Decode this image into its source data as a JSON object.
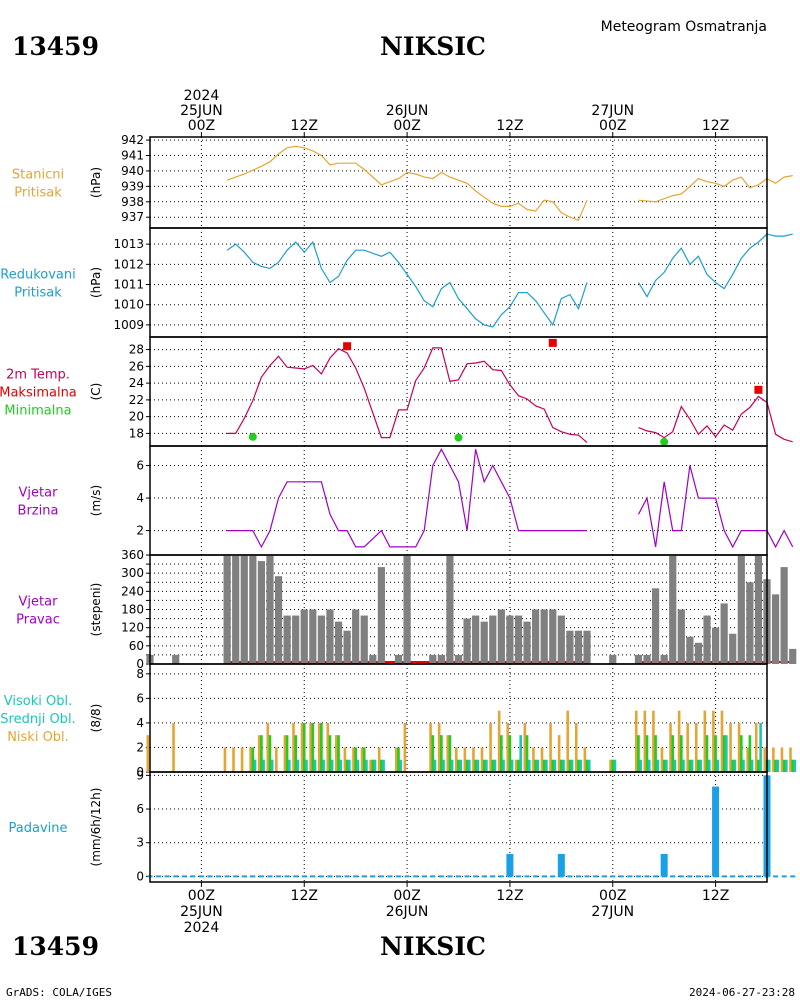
{
  "header": {
    "station_id": "13459",
    "station_name": "NIKSIC",
    "product": "Meteogram Osmatranja"
  },
  "footer": {
    "station_id": "13459",
    "station_name": "NIKSIC",
    "credit": "GrADS: COLA/IGES",
    "timestamp": "2024-06-27-23:28"
  },
  "time_axis": {
    "labels": [
      {
        "hour": 6,
        "lines": [
          "2024",
          "25JUN",
          "00Z"
        ],
        "bottom_lines": [
          "00Z",
          "25JUN",
          "2024"
        ]
      },
      {
        "hour": 18,
        "lines": [
          "12Z"
        ],
        "bottom_lines": [
          "12Z"
        ]
      },
      {
        "hour": 30,
        "lines": [
          "26JUN",
          "00Z"
        ],
        "bottom_lines": [
          "00Z",
          "26JUN"
        ]
      },
      {
        "hour": 42,
        "lines": [
          "12Z"
        ],
        "bottom_lines": [
          "12Z"
        ]
      },
      {
        "hour": 54,
        "lines": [
          "27JUN",
          "00Z"
        ],
        "bottom_lines": [
          "00Z",
          "27JUN"
        ]
      },
      {
        "hour": 66,
        "lines": [
          "12Z"
        ],
        "bottom_lines": [
          "12Z"
        ]
      }
    ]
  },
  "colors": {
    "pressure": "#e6a532",
    "reduced_pressure": "#1aa0d2",
    "temperature": "#c8005a",
    "tmax": "#e60000",
    "tmin": "#22cc22",
    "wind_speed": "#a000c8",
    "wind_dir_bar": "#808080",
    "wind_dir_base": "#e60000",
    "cloud_low": "#e6a532",
    "cloud_mid": "#22cc22",
    "cloud_high": "#19c8b4",
    "precip": "#1aa0e6"
  },
  "chart_data": [
    {
      "type": "line",
      "name": "pressure",
      "label_lines": [
        "Stanicni",
        "Pritisak"
      ],
      "ylabel": "(hPa)",
      "ylim": [
        936.3,
        942.2
      ],
      "yticks": [
        937,
        938,
        939,
        940,
        941,
        942
      ],
      "x": [
        9,
        11,
        13,
        14,
        15,
        16,
        17,
        18,
        19,
        20,
        21,
        22,
        23,
        24,
        25,
        27,
        29,
        30,
        31,
        32,
        33,
        34,
        35,
        36,
        37,
        38,
        39,
        40,
        41,
        42,
        43,
        44,
        45,
        46,
        47,
        48,
        49,
        50,
        51,
        57,
        59,
        60,
        61,
        62,
        63,
        64,
        65,
        66,
        67,
        68,
        69,
        70,
        71,
        72,
        73,
        74,
        75
      ],
      "values": [
        939.4,
        939.8,
        940.3,
        940.6,
        941.1,
        941.5,
        941.6,
        941.5,
        941.3,
        941.0,
        940.4,
        940.5,
        940.5,
        940.5,
        940.1,
        939.1,
        939.5,
        939.9,
        939.8,
        939.6,
        939.5,
        939.9,
        939.6,
        939.4,
        939.2,
        938.7,
        938.3,
        937.9,
        937.7,
        937.7,
        937.9,
        937.5,
        937.4,
        938.1,
        938.0,
        937.3,
        937.0,
        936.8,
        938.1,
        938.1,
        938.0,
        938.2,
        938.4,
        938.5,
        939.0,
        939.5,
        939.3,
        939.2,
        939.0,
        939.4,
        939.6,
        938.9,
        939.1,
        939.5,
        939.2,
        939.6,
        939.7
      ]
    },
    {
      "type": "line",
      "name": "reduced_pressure",
      "label_lines": [
        "Redukovani",
        "Pritisak"
      ],
      "ylabel": "(hPa)",
      "ylim": [
        1008.4,
        1013.8
      ],
      "yticks": [
        1009,
        1010,
        1011,
        1012,
        1013
      ],
      "x": [
        9,
        10,
        11,
        12,
        13,
        14,
        15,
        16,
        17,
        18,
        19,
        20,
        21,
        22,
        23,
        24,
        25,
        27,
        28,
        29,
        30,
        31,
        32,
        33,
        34,
        35,
        36,
        37,
        38,
        39,
        40,
        41,
        42,
        43,
        44,
        45,
        46,
        47,
        48,
        49,
        50,
        51,
        57,
        58,
        59,
        60,
        61,
        62,
        63,
        64,
        65,
        66,
        67,
        68,
        69,
        70,
        71,
        72,
        73,
        74,
        75
      ],
      "values": [
        1012.7,
        1013.0,
        1012.6,
        1012.1,
        1011.9,
        1011.8,
        1012.1,
        1012.7,
        1013.1,
        1012.6,
        1013.1,
        1011.8,
        1011.1,
        1011.4,
        1012.2,
        1012.7,
        1012.7,
        1012.4,
        1012.6,
        1012.1,
        1011.5,
        1010.9,
        1010.2,
        1009.9,
        1010.8,
        1011.1,
        1010.3,
        1009.8,
        1009.3,
        1009.0,
        1008.9,
        1009.5,
        1009.9,
        1010.6,
        1010.6,
        1010.2,
        1009.6,
        1009.0,
        1010.3,
        1010.5,
        1009.8,
        1011.1,
        1011.1,
        1010.4,
        1011.2,
        1011.6,
        1012.3,
        1012.8,
        1012.0,
        1012.4,
        1011.5,
        1011.1,
        1010.8,
        1011.5,
        1012.3,
        1012.8,
        1013.1,
        1013.5,
        1013.4,
        1013.4,
        1013.5
      ]
    },
    {
      "type": "line",
      "name": "temperature",
      "label_lines": [
        "2m Temp.",
        "Maksimalna",
        "Minimalna"
      ],
      "ylabel": "(C)",
      "ylim": [
        16.5,
        29.5
      ],
      "yticks": [
        18,
        20,
        22,
        24,
        26,
        28
      ],
      "x": [
        9,
        10,
        11,
        12,
        13,
        14,
        15,
        16,
        17,
        18,
        19,
        20,
        21,
        22,
        23,
        24,
        25,
        27,
        28,
        29,
        30,
        31,
        32,
        33,
        34,
        35,
        36,
        37,
        38,
        39,
        40,
        41,
        42,
        43,
        44,
        45,
        46,
        47,
        48,
        49,
        50,
        51,
        57,
        58,
        59,
        60,
        61,
        62,
        63,
        64,
        65,
        66,
        67,
        68,
        69,
        70,
        71,
        72,
        73,
        74,
        75
      ],
      "values": [
        18.0,
        18.0,
        19.8,
        21.9,
        24.7,
        26.1,
        27.2,
        25.9,
        25.8,
        25.7,
        26.1,
        25.1,
        27.0,
        28.1,
        27.6,
        25.8,
        23.4,
        17.5,
        17.5,
        20.8,
        20.8,
        24.3,
        25.8,
        28.2,
        28.2,
        24.2,
        24.4,
        26.3,
        26.4,
        26.6,
        25.6,
        25.5,
        23.8,
        22.5,
        22.1,
        21.3,
        20.9,
        18.7,
        18.2,
        17.9,
        17.8,
        16.9,
        18.7,
        18.3,
        18.1,
        17.5,
        18.2,
        21.2,
        19.7,
        17.9,
        18.9,
        17.6,
        19.0,
        18.4,
        20.3,
        21.1,
        22.4,
        21.7,
        17.9,
        17.3,
        17.0
      ],
      "max_markers": [
        {
          "x": 23,
          "y": 28.4
        },
        {
          "x": 47,
          "y": 28.8
        },
        {
          "x": 71,
          "y": 23.2
        }
      ],
      "min_markers": [
        {
          "x": 12,
          "y": 17.6
        },
        {
          "x": 36,
          "y": 17.5
        },
        {
          "x": 60,
          "y": 17.0
        }
      ]
    },
    {
      "type": "line",
      "name": "wind_speed",
      "label_lines": [
        "Vjetar",
        "Brzina"
      ],
      "ylabel": "(m/s)",
      "ylim": [
        0.5,
        7.2
      ],
      "yticks": [
        2,
        4,
        6
      ],
      "x": [
        9,
        10,
        11,
        12,
        13,
        14,
        15,
        16,
        17,
        18,
        19,
        20,
        21,
        22,
        23,
        24,
        25,
        27,
        28,
        29,
        30,
        31,
        32,
        33,
        34,
        35,
        36,
        37,
        38,
        39,
        40,
        41,
        42,
        43,
        44,
        45,
        46,
        47,
        48,
        49,
        50,
        51,
        57,
        58,
        59,
        60,
        61,
        62,
        63,
        64,
        65,
        66,
        67,
        68,
        69,
        70,
        71,
        72,
        73,
        74,
        75
      ],
      "values": [
        2,
        2,
        2,
        2,
        1,
        2,
        4,
        5,
        5,
        5,
        5,
        5,
        3,
        2,
        2,
        1,
        1,
        2,
        1,
        1,
        1,
        1,
        2,
        6,
        7,
        6,
        5,
        2,
        7,
        5,
        6,
        5,
        4,
        2,
        2,
        2,
        2,
        2,
        2,
        2,
        2,
        2,
        3,
        4,
        1,
        5,
        2,
        2,
        6,
        4,
        4,
        4,
        2,
        1,
        2,
        2,
        2,
        2,
        1,
        2,
        1
      ]
    },
    {
      "type": "bar",
      "name": "wind_direction",
      "label_lines": [
        "Vjetar",
        "Pravac"
      ],
      "ylabel": "(stepeni)",
      "ylim": [
        0,
        360
      ],
      "yticks": [
        0,
        30,
        60,
        90,
        120,
        150,
        180,
        210,
        240,
        270,
        300,
        330,
        360
      ],
      "ytick_labels": [
        "0",
        "",
        "60",
        "",
        "120",
        "",
        "180",
        "",
        "240",
        "",
        "300",
        "",
        "360"
      ],
      "x": [
        0,
        3,
        6,
        9,
        10,
        11,
        12,
        13,
        14,
        15,
        16,
        17,
        18,
        19,
        20,
        21,
        22,
        23,
        24,
        25,
        26,
        27,
        29,
        30,
        33,
        34,
        35,
        36,
        37,
        38,
        39,
        40,
        41,
        42,
        43,
        44,
        45,
        46,
        47,
        48,
        49,
        50,
        51,
        54,
        57,
        58,
        59,
        60,
        61,
        62,
        63,
        64,
        65,
        66,
        67,
        68,
        69,
        70,
        71,
        72,
        73,
        74,
        75
      ],
      "values": [
        30,
        30,
        0,
        360,
        360,
        360,
        360,
        340,
        360,
        290,
        160,
        160,
        180,
        180,
        160,
        180,
        140,
        110,
        180,
        160,
        30,
        320,
        30,
        360,
        30,
        30,
        360,
        30,
        150,
        160,
        140,
        160,
        180,
        160,
        160,
        140,
        180,
        180,
        180,
        160,
        110,
        110,
        110,
        30,
        30,
        30,
        250,
        30,
        360,
        180,
        90,
        70,
        160,
        120,
        200,
        100,
        360,
        270,
        360,
        280,
        230,
        320,
        50
      ]
    },
    {
      "type": "bar",
      "name": "clouds",
      "label_lines": [
        "Visoki Obl.",
        "Srednji Obl.",
        "Niski Obl."
      ],
      "ylabel": "(8/8)",
      "ylim": [
        0,
        8.8
      ],
      "yticks": [
        0,
        2,
        4,
        6,
        8
      ],
      "x": [
        0,
        3,
        6,
        9,
        10,
        11,
        12,
        13,
        14,
        15,
        16,
        17,
        18,
        19,
        20,
        21,
        22,
        23,
        24,
        25,
        26,
        27,
        29,
        30,
        33,
        34,
        35,
        36,
        37,
        38,
        39,
        40,
        41,
        42,
        43,
        44,
        45,
        46,
        47,
        48,
        49,
        50,
        51,
        54,
        57,
        58,
        59,
        60,
        61,
        62,
        63,
        64,
        65,
        66,
        67,
        68,
        69,
        70,
        71,
        72,
        73,
        74,
        75
      ],
      "series": [
        {
          "name": "Niski Obl.",
          "values": [
            3,
            4,
            0,
            2,
            2,
            2,
            2,
            3,
            4,
            2,
            3,
            4,
            4,
            4,
            4,
            4,
            3,
            2,
            2,
            2,
            1,
            2,
            2,
            4,
            4,
            4,
            3,
            2,
            2,
            2,
            2,
            4,
            5,
            4,
            1,
            4,
            2,
            2,
            4,
            3,
            5,
            4,
            2,
            1,
            5,
            5,
            5,
            2,
            4,
            5,
            4,
            4,
            5,
            5,
            5,
            4,
            4,
            2,
            4,
            2,
            2,
            2,
            2
          ]
        },
        {
          "name": "Srednji Obl.",
          "values": [
            0,
            0,
            0,
            0,
            0,
            0,
            2,
            3,
            3,
            0,
            3,
            3,
            4,
            4,
            4,
            3,
            3,
            1,
            2,
            2,
            1,
            1,
            2,
            0,
            3,
            3,
            3,
            1,
            1,
            1,
            1,
            1,
            3,
            3,
            1,
            3,
            1,
            1,
            1,
            1,
            1,
            1,
            1,
            1,
            3,
            3,
            3,
            1,
            3,
            3,
            1,
            1,
            3,
            3,
            3,
            1,
            3,
            3,
            1,
            1,
            1,
            1,
            1
          ]
        },
        {
          "name": "Visoki Obl.",
          "values": [
            0,
            0,
            0,
            0,
            0,
            0,
            1,
            1,
            1,
            0,
            1,
            1,
            1,
            1,
            1,
            1,
            1,
            1,
            1,
            1,
            1,
            1,
            1,
            0,
            1,
            1,
            1,
            1,
            1,
            1,
            1,
            1,
            1,
            1,
            3,
            1,
            1,
            1,
            1,
            1,
            1,
            1,
            1,
            1,
            1,
            1,
            1,
            1,
            1,
            1,
            1,
            1,
            1,
            1,
            3,
            1,
            1,
            1,
            4,
            1,
            1,
            1,
            1
          ]
        }
      ]
    },
    {
      "type": "bar",
      "name": "precipitation",
      "label_lines": [
        "Padavine"
      ],
      "ylabel": "(mm/6h/12h)",
      "ylim": [
        -0.5,
        9.3
      ],
      "yticks": [
        0,
        3,
        6,
        9
      ],
      "x": [
        42,
        48,
        60,
        66,
        72
      ],
      "values": [
        2,
        2,
        2,
        8,
        9
      ]
    }
  ]
}
